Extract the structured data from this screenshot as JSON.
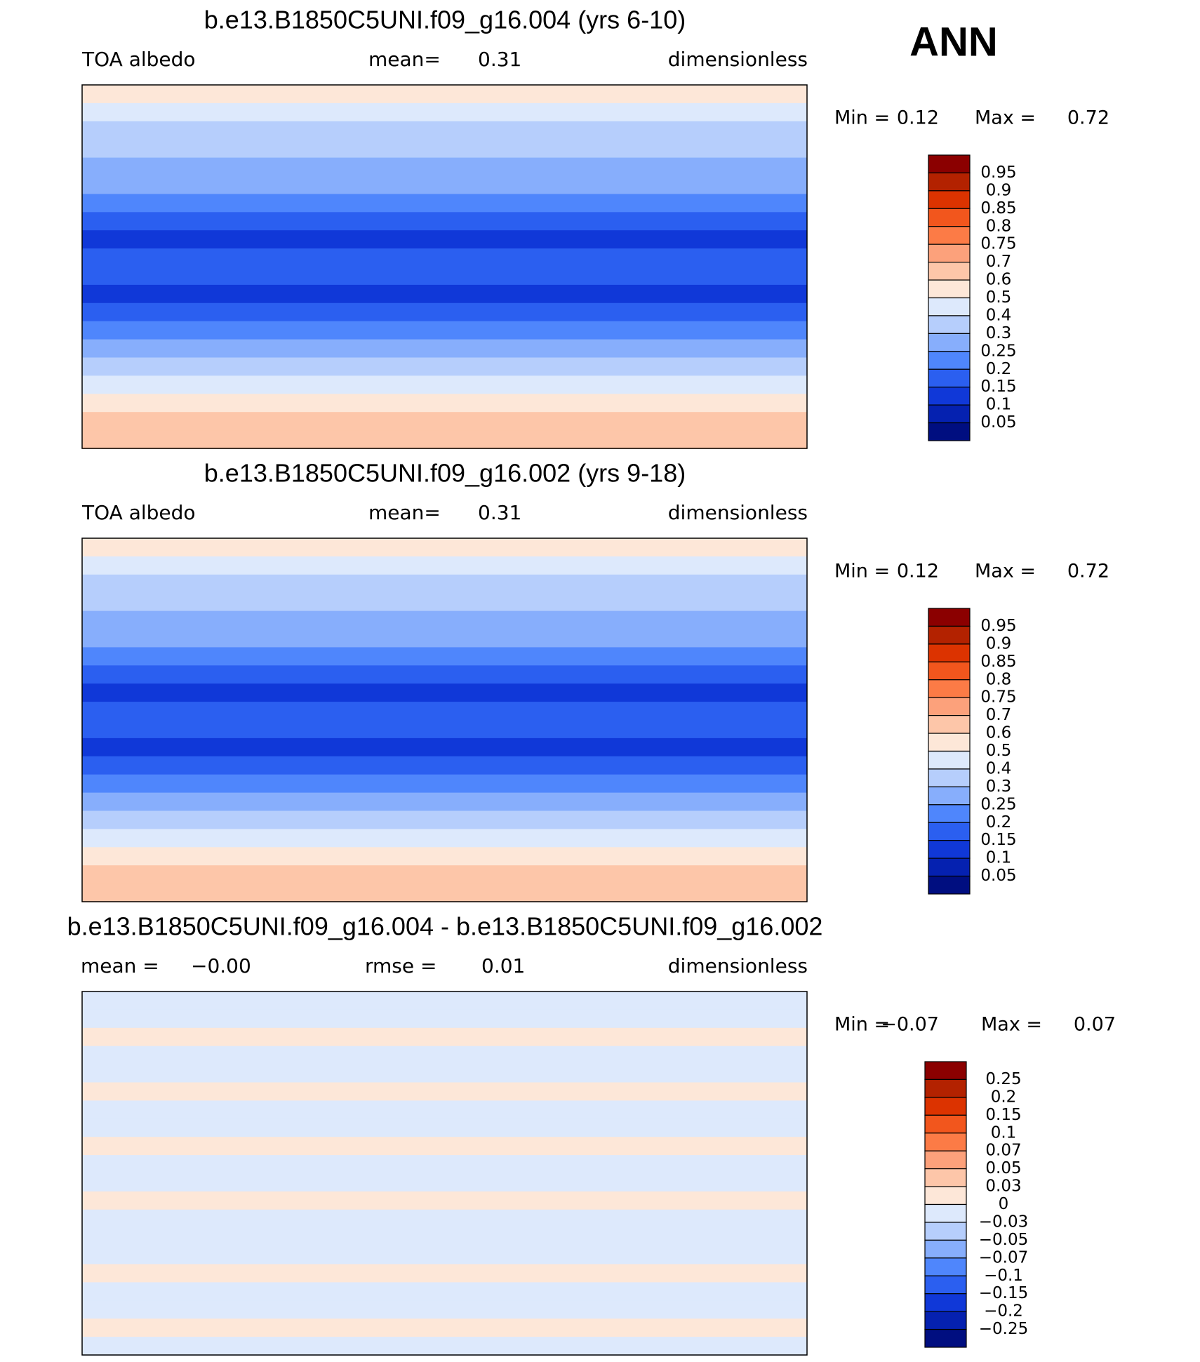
{
  "header": {
    "season": "ANN"
  },
  "panels": [
    {
      "title": "b.e13.B1850C5UNI.f09_g16.004 (yrs 6-10)",
      "field": "TOA  albedo",
      "stat_label": "mean=",
      "stat_value": "0.31",
      "stat2_label": null,
      "stat2_value": null,
      "units": "dimensionless",
      "min_label": "Min =",
      "min_value": "0.12",
      "max_label": "Max =",
      "max_value": "0.72",
      "colorbar": {
        "labels": [
          "0.95",
          "0.9",
          "0.85",
          "0.8",
          "0.75",
          "0.7",
          "0.6",
          "0.5",
          "0.4",
          "0.3",
          "0.25",
          "0.2",
          "0.15",
          "0.1",
          "0.05"
        ],
        "colors": [
          "#8b0000",
          "#b32200",
          "#dc3300",
          "#f2561d",
          "#fc7b46",
          "#fca17b",
          "#fdc6a9",
          "#fde7d8",
          "#dde9fc",
          "#b6cefc",
          "#87aefc",
          "#4f86fc",
          "#2b5ff0",
          "#1038d8",
          "#0521b0",
          "#000e80"
        ]
      }
    },
    {
      "title": "b.e13.B1850C5UNI.f09_g16.002 (yrs 9-18)",
      "field": "TOA  albedo",
      "stat_label": "mean=",
      "stat_value": "0.31",
      "stat2_label": null,
      "stat2_value": null,
      "units": "dimensionless",
      "min_label": "Min =",
      "min_value": "0.12",
      "max_label": "Max =",
      "max_value": "0.72",
      "colorbar": {
        "labels": [
          "0.95",
          "0.9",
          "0.85",
          "0.8",
          "0.75",
          "0.7",
          "0.6",
          "0.5",
          "0.4",
          "0.3",
          "0.25",
          "0.2",
          "0.15",
          "0.1",
          "0.05"
        ],
        "colors": [
          "#8b0000",
          "#b32200",
          "#dc3300",
          "#f2561d",
          "#fc7b46",
          "#fca17b",
          "#fdc6a9",
          "#fde7d8",
          "#dde9fc",
          "#b6cefc",
          "#87aefc",
          "#4f86fc",
          "#2b5ff0",
          "#1038d8",
          "#0521b0",
          "#000e80"
        ]
      }
    },
    {
      "title": "b.e13.B1850C5UNI.f09_g16.004 - b.e13.B1850C5UNI.f09_g16.002",
      "field": null,
      "stat_label": "mean =",
      "stat_value": "−0.00",
      "stat2_label": "rmse =",
      "stat2_value": "0.01",
      "units": "dimensionless",
      "min_label": "Min =",
      "min_value": "−0.07",
      "max_label": "Max =",
      "max_value": "0.07",
      "colorbar": {
        "labels": [
          "0.25",
          "0.2",
          "0.15",
          "0.1",
          "0.07",
          "0.05",
          "0.03",
          "0",
          "−0.03",
          "−0.05",
          "−0.07",
          "−0.1",
          "−0.15",
          "−0.2",
          "−0.25"
        ],
        "colors": [
          "#8b0000",
          "#b32200",
          "#dc3300",
          "#f2561d",
          "#fc7b46",
          "#fca17b",
          "#fdc6a9",
          "#fde7d8",
          "#dde9fc",
          "#b6cefc",
          "#87aefc",
          "#4f86fc",
          "#2b5ff0",
          "#1038d8",
          "#0521b0",
          "#000e80"
        ]
      }
    }
  ]
}
